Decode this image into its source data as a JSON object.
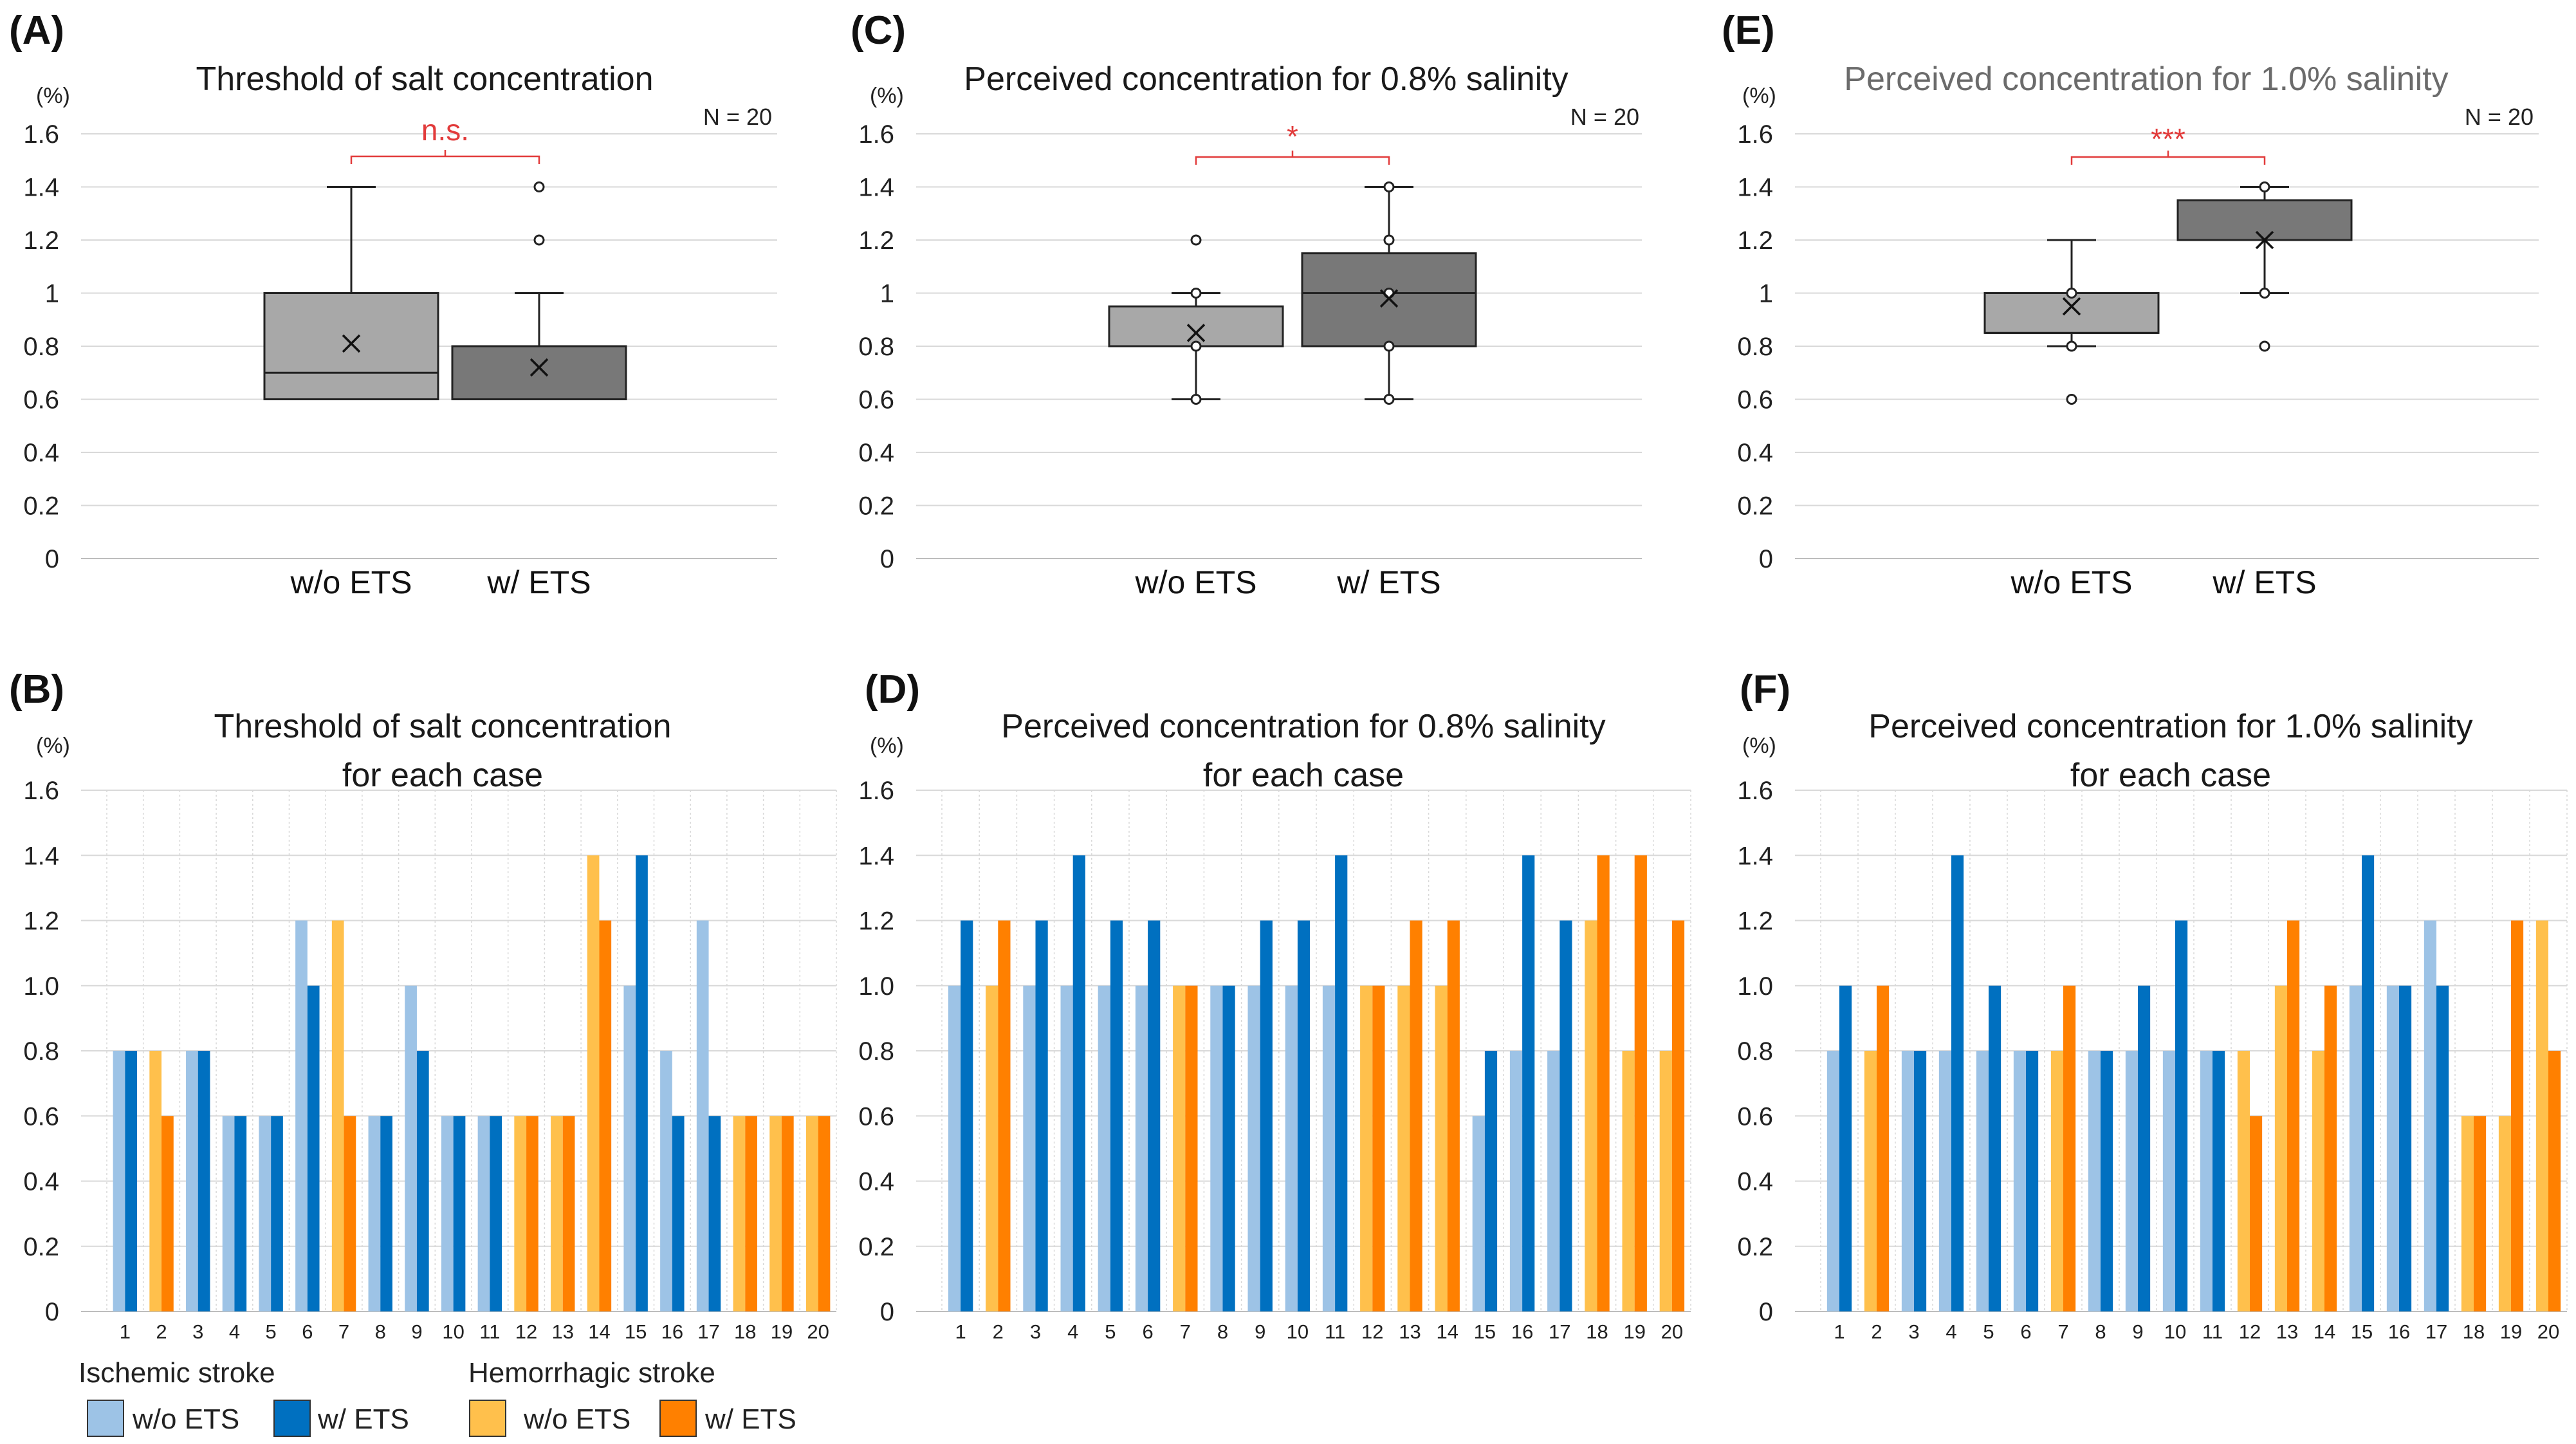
{
  "colors": {
    "isch_wo": "#9dc3e6",
    "isch_w": "#0070c0",
    "hem_wo": "#ffc04c",
    "hem_w": "#ff8000",
    "box_wo": "#a8a8a8",
    "box_w": "#787878",
    "sig": "#e23b3b"
  },
  "chart_data": [
    {
      "panel": "(A)",
      "type": "box",
      "title": "Threshold of salt concentration",
      "ylabel": "(%)",
      "n_label": "N = 20",
      "ylim": [
        0,
        1.6
      ],
      "yticks": [
        "0",
        "0.2",
        "0.4",
        "0.6",
        "0.8",
        "1",
        "1.2",
        "1.4",
        "1.6"
      ],
      "categories": [
        "w/o ETS",
        "w/  ETS"
      ],
      "significance": "n.s.",
      "boxes": [
        {
          "name": "w/o ETS",
          "q1": 0.6,
          "median": 0.7,
          "q3": 1.0,
          "whisker_low": 0.6,
          "whisker_high": 1.4,
          "mean": 0.81,
          "outliers": []
        },
        {
          "name": "w/  ETS",
          "q1": 0.6,
          "median": 0.6,
          "q3": 0.8,
          "whisker_low": 0.6,
          "whisker_high": 1.0,
          "mean": 0.72,
          "outliers": [
            1.2,
            1.4
          ]
        }
      ]
    },
    {
      "panel": "(C)",
      "type": "box",
      "title": "Perceived concentration for 0.8% salinity",
      "ylabel": "(%)",
      "n_label": "N = 20",
      "ylim": [
        0,
        1.6
      ],
      "yticks": [
        "0",
        "0.2",
        "0.4",
        "0.6",
        "0.8",
        "1",
        "1.2",
        "1.4",
        "1.6"
      ],
      "categories": [
        "w/o ETS",
        "w/  ETS"
      ],
      "significance": "*",
      "boxes": [
        {
          "name": "w/o ETS",
          "q1": 0.8,
          "median": 0.8,
          "q3": 0.95,
          "whisker_low": 0.6,
          "whisker_high": 1.0,
          "mean": 0.85,
          "inner_points": [
            0.6,
            0.8,
            1.0
          ],
          "outliers": [
            1.2
          ]
        },
        {
          "name": "w/  ETS",
          "q1": 0.8,
          "median": 1.0,
          "q3": 1.15,
          "whisker_low": 0.6,
          "whisker_high": 1.4,
          "mean": 0.98,
          "inner_points": [
            0.6,
            0.8,
            1.0,
            1.2,
            1.4
          ],
          "outliers": []
        }
      ]
    },
    {
      "panel": "(E)",
      "type": "box",
      "title": "Perceived concentration for 1.0% salinity",
      "ylabel": "(%)",
      "n_label": "N = 20",
      "ylim": [
        0,
        1.6
      ],
      "yticks": [
        "0",
        "0.2",
        "0.4",
        "0.6",
        "0.8",
        "1",
        "1.2",
        "1.4",
        "1.6"
      ],
      "categories": [
        "w/o ETS",
        "w/  ETS"
      ],
      "significance": "***",
      "boxes": [
        {
          "name": "w/o ETS",
          "q1": 0.85,
          "median": 0.85,
          "q3": 1.0,
          "whisker_low": 0.8,
          "whisker_high": 1.2,
          "mean": 0.95,
          "inner_points": [
            0.8,
            1.0
          ],
          "outliers": [
            0.6
          ]
        },
        {
          "name": "w/  ETS",
          "q1": 1.2,
          "median": 1.2,
          "q3": 1.35,
          "whisker_low": 1.0,
          "whisker_high": 1.4,
          "mean": 1.2,
          "inner_points": [
            1.0,
            1.4
          ],
          "outliers": [
            0.8
          ]
        }
      ]
    },
    {
      "panel": "(B)",
      "type": "bar",
      "title": [
        "Threshold of salt concentration",
        "for each case"
      ],
      "ylabel": "(%)",
      "ylim": [
        0,
        1.6
      ],
      "yticks": [
        "0",
        "0.2",
        "0.4",
        "0.6",
        "0.8",
        "1.0",
        "1.2",
        "1.4",
        "1.6"
      ],
      "categories": [
        "1",
        "2",
        "3",
        "4",
        "5",
        "6",
        "7",
        "8",
        "9",
        "10",
        "11",
        "12",
        "13",
        "14",
        "15",
        "16",
        "17",
        "18",
        "19",
        "20"
      ],
      "stroke_type": [
        "I",
        "H",
        "I",
        "I",
        "I",
        "I",
        "H",
        "I",
        "I",
        "I",
        "I",
        "H",
        "H",
        "H",
        "I",
        "I",
        "I",
        "H",
        "H",
        "H"
      ],
      "series": [
        {
          "name": "w/o ETS",
          "values": [
            0.8,
            0.8,
            0.8,
            0.6,
            0.6,
            1.2,
            1.2,
            0.6,
            1.0,
            0.6,
            0.6,
            0.6,
            0.6,
            1.4,
            1.0,
            0.8,
            1.2,
            0.6,
            0.6,
            0.6
          ]
        },
        {
          "name": "w/ ETS",
          "values": [
            0.8,
            0.6,
            0.8,
            0.6,
            0.6,
            1.0,
            0.6,
            0.6,
            0.8,
            0.6,
            0.6,
            0.6,
            0.6,
            1.2,
            1.4,
            0.6,
            0.6,
            0.6,
            0.6,
            0.6
          ]
        }
      ]
    },
    {
      "panel": "(D)",
      "type": "bar",
      "title": [
        "Perceived concentration for 0.8% salinity",
        "for each case"
      ],
      "ylabel": "(%)",
      "ylim": [
        0,
        1.6
      ],
      "yticks": [
        "0",
        "0.2",
        "0.4",
        "0.6",
        "0.8",
        "1.0",
        "1.2",
        "1.4",
        "1.6"
      ],
      "categories": [
        "1",
        "2",
        "3",
        "4",
        "5",
        "6",
        "7",
        "8",
        "9",
        "10",
        "11",
        "12",
        "13",
        "14",
        "15",
        "16",
        "17",
        "18",
        "19",
        "20"
      ],
      "stroke_type": [
        "I",
        "H",
        "I",
        "I",
        "I",
        "I",
        "H",
        "I",
        "I",
        "I",
        "I",
        "H",
        "H",
        "H",
        "I",
        "I",
        "I",
        "H",
        "H",
        "H"
      ],
      "series": [
        {
          "name": "w/o ETS",
          "values": [
            1.0,
            1.0,
            1.0,
            1.0,
            1.0,
            1.0,
            1.0,
            1.0,
            1.0,
            1.0,
            1.0,
            1.0,
            1.0,
            1.0,
            0.6,
            0.8,
            0.8,
            1.2,
            0.8,
            0.8
          ]
        },
        {
          "name": "w/ ETS",
          "values": [
            1.2,
            1.2,
            1.2,
            1.4,
            1.2,
            1.2,
            1.0,
            1.0,
            1.2,
            1.2,
            1.4,
            1.0,
            1.2,
            1.2,
            0.8,
            1.4,
            1.2,
            1.4,
            1.4,
            1.2
          ]
        }
      ]
    },
    {
      "panel": "(F)",
      "type": "bar",
      "title": [
        "Perceived concentration for 1.0% salinity",
        "for each case"
      ],
      "ylabel": "(%)",
      "ylim": [
        0,
        1.6
      ],
      "yticks": [
        "0",
        "0.2",
        "0.4",
        "0.6",
        "0.8",
        "1.0",
        "1.2",
        "1.4",
        "1.6"
      ],
      "categories": [
        "1",
        "2",
        "3",
        "4",
        "5",
        "6",
        "7",
        "8",
        "9",
        "10",
        "11",
        "12",
        "13",
        "14",
        "15",
        "16",
        "17",
        "18",
        "19",
        "20"
      ],
      "stroke_type": [
        "I",
        "H",
        "I",
        "I",
        "I",
        "I",
        "H",
        "I",
        "I",
        "I",
        "I",
        "H",
        "H",
        "H",
        "I",
        "I",
        "I",
        "H",
        "H",
        "H"
      ],
      "series": [
        {
          "name": "w/o ETS",
          "values": [
            0.8,
            0.8,
            0.8,
            0.8,
            0.8,
            0.8,
            0.8,
            0.8,
            0.8,
            0.8,
            0.8,
            0.8,
            1.0,
            0.8,
            1.0,
            1.0,
            1.2,
            0.6,
            0.6,
            1.2
          ]
        },
        {
          "name": "w/ ETS",
          "values": [
            1.0,
            1.0,
            0.8,
            1.4,
            1.0,
            0.8,
            1.0,
            0.8,
            1.0,
            1.2,
            0.8,
            0.6,
            1.2,
            1.0,
            1.4,
            1.0,
            1.0,
            0.6,
            1.2,
            0.8
          ]
        }
      ]
    }
  ],
  "legend": {
    "ischemic_title": "Ischemic stroke",
    "hemorrhagic_title": "Hemorrhagic stroke",
    "items": [
      {
        "label": "w/o ETS",
        "color_key": "isch_wo"
      },
      {
        "label": "w/ ETS",
        "color_key": "isch_w"
      },
      {
        "label": "w/o ETS",
        "color_key": "hem_wo"
      },
      {
        "label": "w/ ETS",
        "color_key": "hem_w"
      }
    ]
  }
}
